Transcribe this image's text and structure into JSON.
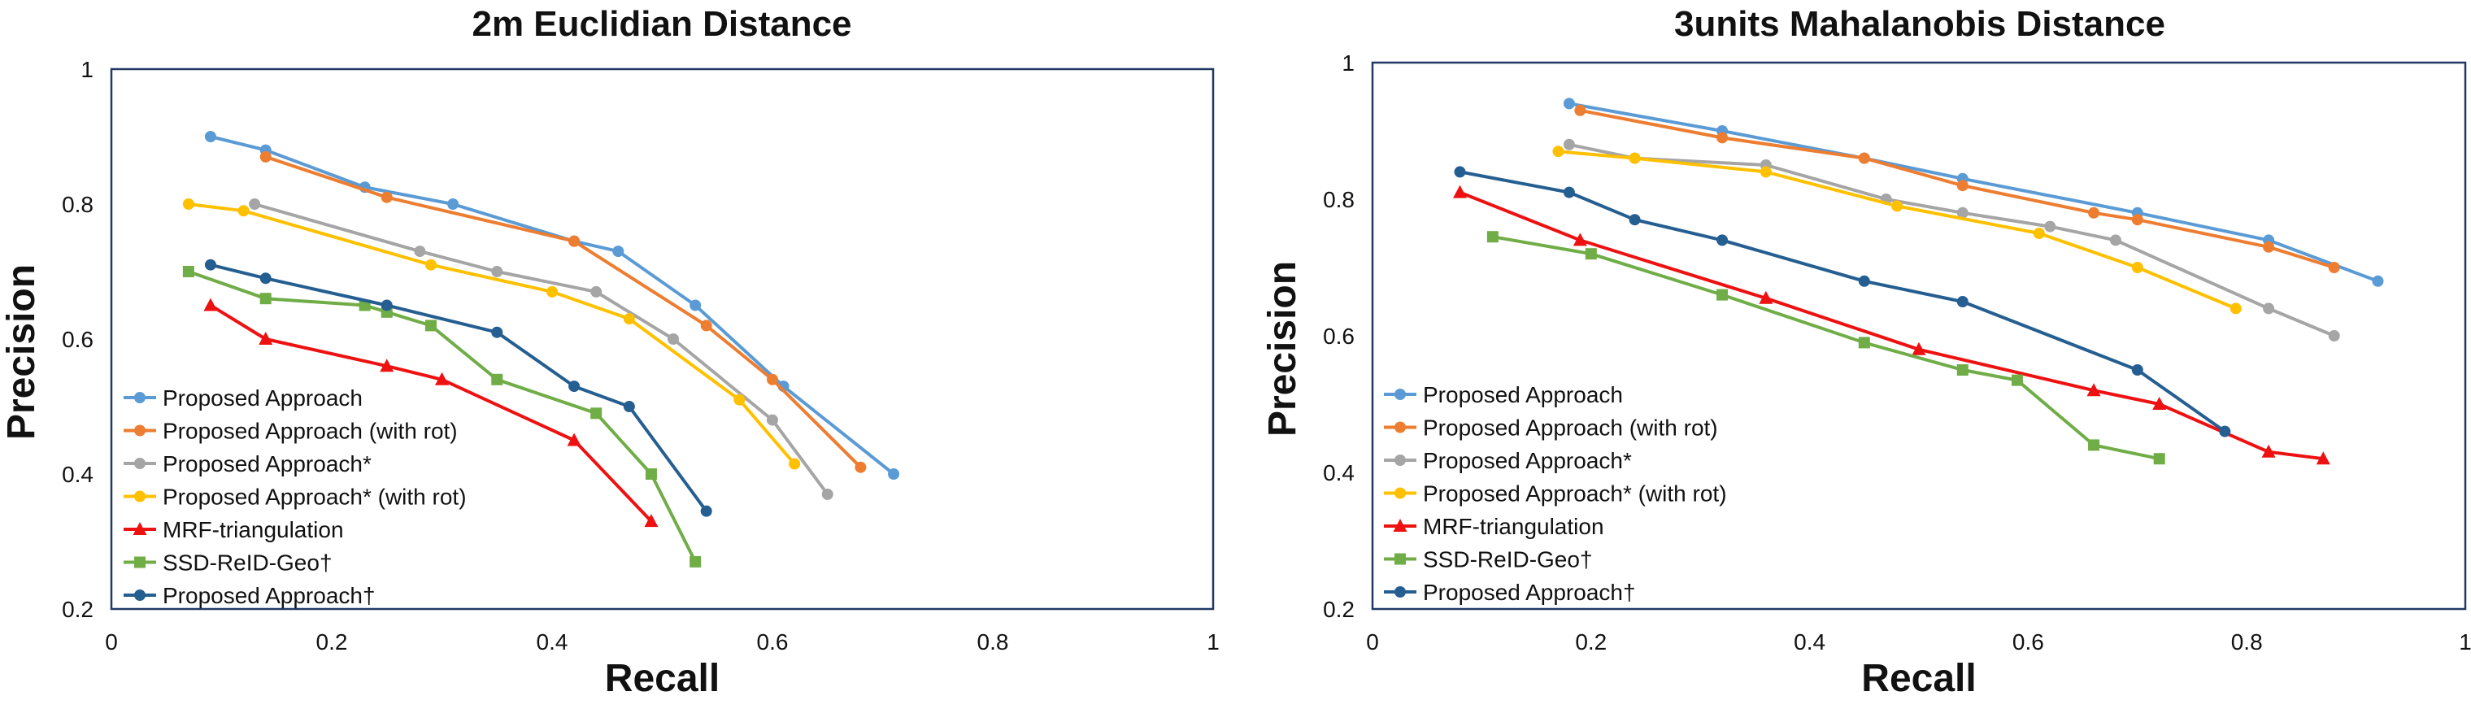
{
  "chart_data": [
    {
      "type": "line",
      "title": "2m Euclidian Distance",
      "xlabel": "Recall",
      "ylabel": "Precision",
      "xlim": [
        0,
        1
      ],
      "ylim": [
        0.2,
        1
      ],
      "xticks": [
        "0",
        "0.2",
        "0.4",
        "0.6",
        "0.8",
        "1"
      ],
      "yticks": [
        "0.2",
        "0.4",
        "0.6",
        "0.8",
        "1"
      ],
      "grid": false,
      "legend_position": "bottom-left",
      "series": [
        {
          "name": "Proposed Approach",
          "color": "#5B9BD5",
          "marker": "circle",
          "x": [
            0.09,
            0.14,
            0.23,
            0.31,
            0.42,
            0.46,
            0.53,
            0.61,
            0.71
          ],
          "y": [
            0.9,
            0.88,
            0.825,
            0.8,
            0.745,
            0.73,
            0.65,
            0.53,
            0.4
          ]
        },
        {
          "name": "Proposed Approach (with rot)",
          "color": "#ED7D31",
          "marker": "circle",
          "x": [
            0.14,
            0.25,
            0.42,
            0.54,
            0.6,
            0.68
          ],
          "y": [
            0.87,
            0.81,
            0.745,
            0.62,
            0.54,
            0.41
          ]
        },
        {
          "name": "Proposed Approach*",
          "color": "#A5A5A5",
          "marker": "circle",
          "x": [
            0.13,
            0.28,
            0.35,
            0.44,
            0.51,
            0.6,
            0.65
          ],
          "y": [
            0.8,
            0.73,
            0.7,
            0.67,
            0.6,
            0.48,
            0.37
          ]
        },
        {
          "name": "Proposed Approach* (with rot)",
          "color": "#FFC000",
          "marker": "circle",
          "x": [
            0.07,
            0.12,
            0.29,
            0.4,
            0.47,
            0.57,
            0.62
          ],
          "y": [
            0.8,
            0.79,
            0.71,
            0.67,
            0.63,
            0.51,
            0.415
          ]
        },
        {
          "name": "MRF-triangulation",
          "color": "#EE1111",
          "marker": "triangle",
          "x": [
            0.09,
            0.14,
            0.25,
            0.3,
            0.42,
            0.49
          ],
          "y": [
            0.65,
            0.6,
            0.56,
            0.54,
            0.45,
            0.33
          ]
        },
        {
          "name": "SSD-ReID-Geo†",
          "color": "#70AD47",
          "marker": "square",
          "x": [
            0.07,
            0.14,
            0.23,
            0.25,
            0.29,
            0.35,
            0.44,
            0.49,
            0.53
          ],
          "y": [
            0.7,
            0.66,
            0.65,
            0.64,
            0.62,
            0.54,
            0.49,
            0.4,
            0.27
          ]
        },
        {
          "name": "Proposed Approach†",
          "color": "#255E91",
          "marker": "circle",
          "x": [
            0.09,
            0.14,
            0.25,
            0.35,
            0.42,
            0.47,
            0.54
          ],
          "y": [
            0.71,
            0.69,
            0.65,
            0.61,
            0.53,
            0.5,
            0.345
          ]
        }
      ]
    },
    {
      "type": "line",
      "title": "3units Mahalanobis Distance",
      "xlabel": "Recall",
      "ylabel": "Precision",
      "xlim": [
        0,
        1
      ],
      "ylim": [
        0.2,
        1
      ],
      "xticks": [
        "0",
        "0.2",
        "0.4",
        "0.6",
        "0.8",
        "1"
      ],
      "yticks": [
        "0.2",
        "0.4",
        "0.6",
        "0.8",
        "1"
      ],
      "grid": false,
      "legend_position": "bottom-left",
      "series": [
        {
          "name": "Proposed Approach",
          "color": "#5B9BD5",
          "marker": "circle",
          "x": [
            0.18,
            0.32,
            0.45,
            0.54,
            0.7,
            0.82,
            0.92
          ],
          "y": [
            0.94,
            0.9,
            0.86,
            0.83,
            0.78,
            0.74,
            0.68
          ]
        },
        {
          "name": "Proposed Approach (with rot)",
          "color": "#ED7D31",
          "marker": "circle",
          "x": [
            0.19,
            0.32,
            0.45,
            0.54,
            0.66,
            0.7,
            0.82,
            0.88
          ],
          "y": [
            0.93,
            0.89,
            0.86,
            0.82,
            0.78,
            0.77,
            0.73,
            0.7
          ]
        },
        {
          "name": "Proposed Approach*",
          "color": "#A5A5A5",
          "marker": "circle",
          "x": [
            0.18,
            0.24,
            0.36,
            0.47,
            0.54,
            0.62,
            0.68,
            0.82,
            0.88
          ],
          "y": [
            0.88,
            0.86,
            0.85,
            0.8,
            0.78,
            0.76,
            0.74,
            0.64,
            0.6
          ]
        },
        {
          "name": "Proposed Approach* (with rot)",
          "color": "#FFC000",
          "marker": "circle",
          "x": [
            0.17,
            0.24,
            0.36,
            0.48,
            0.61,
            0.7,
            0.79
          ],
          "y": [
            0.87,
            0.86,
            0.84,
            0.79,
            0.75,
            0.7,
            0.64
          ]
        },
        {
          "name": "MRF-triangulation",
          "color": "#EE1111",
          "marker": "triangle",
          "x": [
            0.08,
            0.19,
            0.36,
            0.5,
            0.66,
            0.72,
            0.82,
            0.87
          ],
          "y": [
            0.81,
            0.74,
            0.655,
            0.58,
            0.52,
            0.5,
            0.43,
            0.42
          ]
        },
        {
          "name": "SSD-ReID-Geo†",
          "color": "#70AD47",
          "marker": "square",
          "x": [
            0.11,
            0.2,
            0.32,
            0.45,
            0.54,
            0.59,
            0.66,
            0.72
          ],
          "y": [
            0.745,
            0.72,
            0.66,
            0.59,
            0.55,
            0.535,
            0.44,
            0.42
          ]
        },
        {
          "name": "Proposed Approach†",
          "color": "#255E91",
          "marker": "circle",
          "x": [
            0.08,
            0.18,
            0.24,
            0.32,
            0.45,
            0.54,
            0.7,
            0.78
          ],
          "y": [
            0.84,
            0.81,
            0.77,
            0.74,
            0.68,
            0.65,
            0.55,
            0.46
          ]
        }
      ]
    }
  ]
}
